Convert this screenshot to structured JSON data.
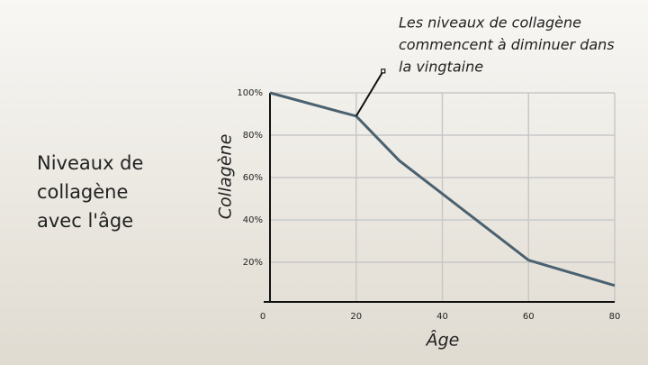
{
  "chart_data": {
    "type": "line",
    "title": "Niveaux de collagène avec l'âge",
    "x_label": "Âge",
    "y_label": "Collagène",
    "annotation": [
      "Les niveaux de collagène",
      "commencent à diminuer dans",
      "la vingtaine"
    ],
    "x": [
      0,
      20,
      30,
      60,
      80
    ],
    "series": [
      {
        "color": "#4a6170",
        "values": [
          100,
          89,
          68,
          21,
          9
        ]
      }
    ],
    "xlim": [
      0,
      80
    ],
    "ylim": [
      0,
      100
    ],
    "xticks": [
      0,
      20,
      40,
      60,
      80
    ],
    "yticks": [
      {
        "value": 20,
        "label": "20%"
      },
      {
        "value": 40,
        "label": "40%"
      },
      {
        "value": 60,
        "label": "60%"
      },
      {
        "value": 80,
        "label": "80%"
      },
      {
        "value": 100,
        "label": "100%"
      }
    ],
    "grid": true
  }
}
